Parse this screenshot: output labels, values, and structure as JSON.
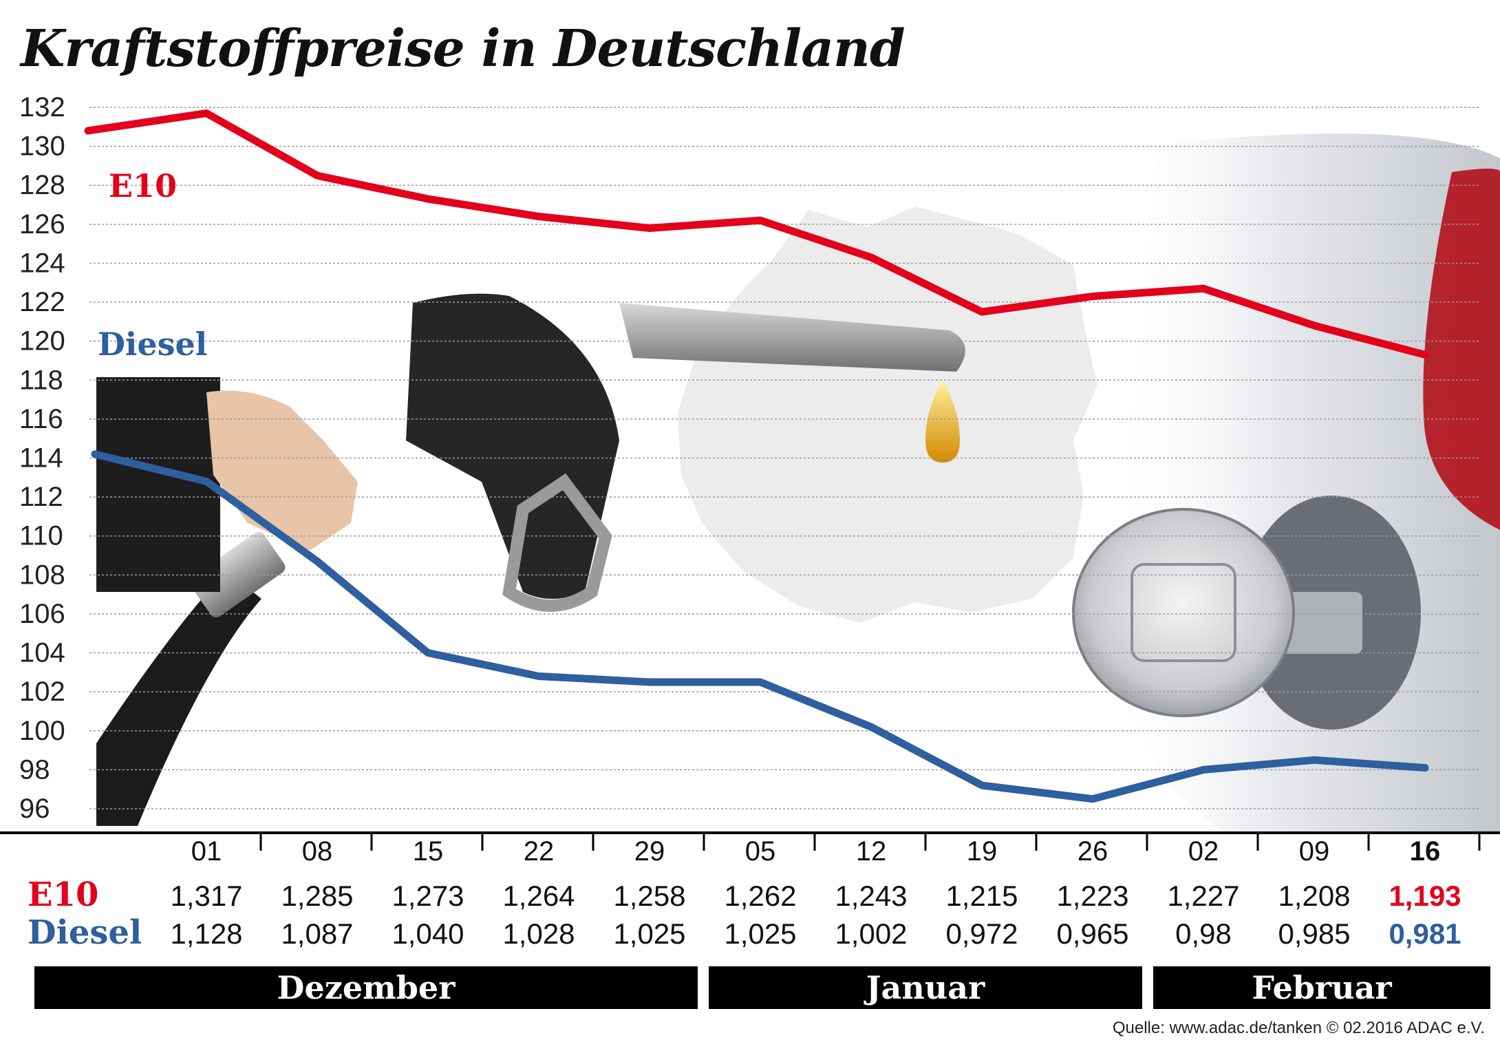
{
  "title": "Kraftstoffpreise in Deutschland",
  "source": "Quelle: www.adac.de/tanken   © 02.2016  ADAC e.V.",
  "colors": {
    "e10": "#e3001b",
    "diesel": "#2e5f9e",
    "grid": "#9a9a9a"
  },
  "icons": [
    "fuel-nozzle-illustration",
    "germany-map-silhouette",
    "car-fuel-cap-illustration",
    "fuel-drop-icon"
  ],
  "months": [
    "Dezember",
    "Januar",
    "Februar"
  ],
  "chart_data": {
    "type": "line",
    "title": "Kraftstoffpreise in Deutschland",
    "x": [
      "01",
      "08",
      "15",
      "22",
      "29",
      "05",
      "12",
      "19",
      "26",
      "02",
      "09",
      "16"
    ],
    "yticks": [
      132,
      130,
      128,
      126,
      124,
      122,
      120,
      118,
      116,
      114,
      112,
      110,
      108,
      106,
      104,
      102,
      100,
      98,
      96
    ],
    "ylim": [
      95,
      132
    ],
    "grid": true,
    "series": [
      {
        "name": "E10",
        "values": [
          1.317,
          1.285,
          1.273,
          1.264,
          1.258,
          1.262,
          1.243,
          1.215,
          1.223,
          1.227,
          1.208,
          1.193
        ],
        "table_labels": [
          "1,317",
          "1,285",
          "1,273",
          "1,264",
          "1,258",
          "1,262",
          "1,243",
          "1,215",
          "1,223",
          "1,227",
          "1,208",
          "1,193"
        ]
      },
      {
        "name": "Diesel",
        "values": [
          1.128,
          1.087,
          1.04,
          1.028,
          1.025,
          1.025,
          1.002,
          0.972,
          0.965,
          0.98,
          0.985,
          0.981
        ],
        "table_labels": [
          "1,128",
          "1,087",
          "1,040",
          "1,028",
          "1,025",
          "1,025",
          "1,002",
          "0,972",
          "0,965",
          "0,98",
          "0,985",
          "0,981"
        ]
      }
    ]
  }
}
